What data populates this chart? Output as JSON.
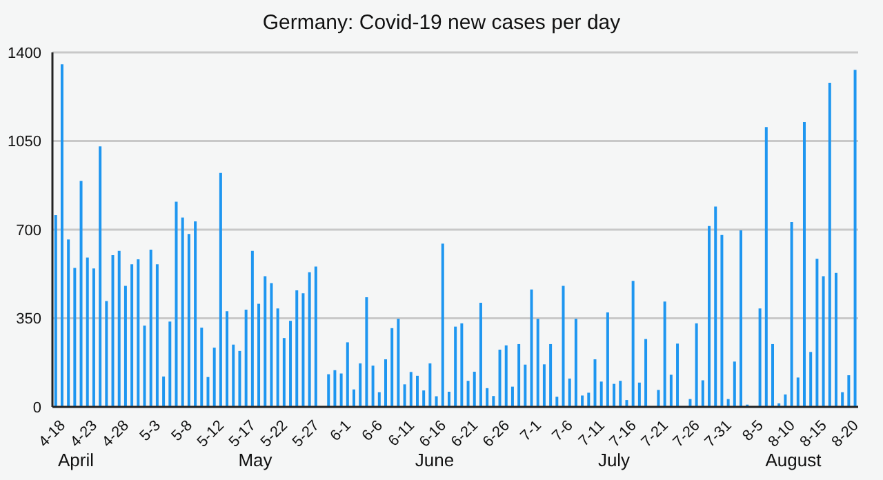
{
  "chart_data": {
    "type": "bar",
    "title": "Germany: Covid-19 new cases per day",
    "categories": [
      null,
      "4-18",
      null,
      null,
      null,
      null,
      "4-23",
      null,
      null,
      null,
      null,
      "4-28",
      null,
      null,
      null,
      null,
      "5-3",
      null,
      null,
      null,
      null,
      "5-8",
      null,
      null,
      null,
      null,
      "5-12",
      null,
      null,
      null,
      null,
      "5-17",
      null,
      null,
      null,
      null,
      "5-22",
      null,
      null,
      null,
      null,
      "5-27",
      null,
      null,
      null,
      null,
      "6-1",
      null,
      null,
      null,
      null,
      "6-6",
      null,
      null,
      null,
      null,
      "6-11",
      null,
      null,
      null,
      null,
      "6-16",
      null,
      null,
      null,
      null,
      "6-21",
      null,
      null,
      null,
      null,
      "6-26",
      null,
      null,
      null,
      null,
      "7-1",
      null,
      null,
      null,
      null,
      "7-6",
      null,
      null,
      null,
      null,
      "7-11",
      null,
      null,
      null,
      null,
      "7-16",
      null,
      null,
      null,
      null,
      "7-21",
      null,
      null,
      null,
      null,
      "7-26",
      null,
      null,
      null,
      null,
      "7-31",
      null,
      null,
      null,
      null,
      "8-5",
      null,
      null,
      null,
      null,
      "8-10",
      null,
      null,
      null,
      null,
      "8-15",
      null,
      null,
      null,
      null,
      "8-20"
    ],
    "values": [
      757,
      1353,
      661,
      549,
      893,
      590,
      547,
      1029,
      418,
      599,
      616,
      478,
      563,
      583,
      321,
      621,
      563,
      120,
      337,
      810,
      748,
      683,
      733,
      313,
      118,
      234,
      924,
      378,
      246,
      221,
      384,
      616,
      407,
      516,
      489,
      389,
      272,
      340,
      460,
      449,
      532,
      554,
      0,
      129,
      145,
      132,
      255,
      69,
      172,
      433,
      163,
      58,
      188,
      311,
      348,
      89,
      138,
      123,
      65,
      172,
      42,
      645,
      60,
      317,
      330,
      103,
      139,
      411,
      74,
      43,
      226,
      243,
      80,
      248,
      167,
      464,
      348,
      168,
      248,
      40,
      478,
      112,
      348,
      45,
      56,
      188,
      100,
      373,
      91,
      103,
      27,
      498,
      96,
      268,
      0,
      67,
      416,
      127,
      250,
      0,
      31,
      330,
      105,
      714,
      791,
      679,
      31,
      179,
      697,
      9,
      0,
      389,
      1105,
      248,
      14,
      49,
      730,
      116,
      1125,
      217,
      585,
      516,
      1280,
      529,
      58,
      125,
      1331
    ],
    "color": "#1e96f0",
    "ylim": [
      0,
      1400
    ],
    "yticks": [
      0,
      350,
      700,
      1050,
      1400
    ],
    "grid": "y",
    "annotations": [
      "April",
      "May",
      "June",
      "July",
      "August"
    ]
  }
}
